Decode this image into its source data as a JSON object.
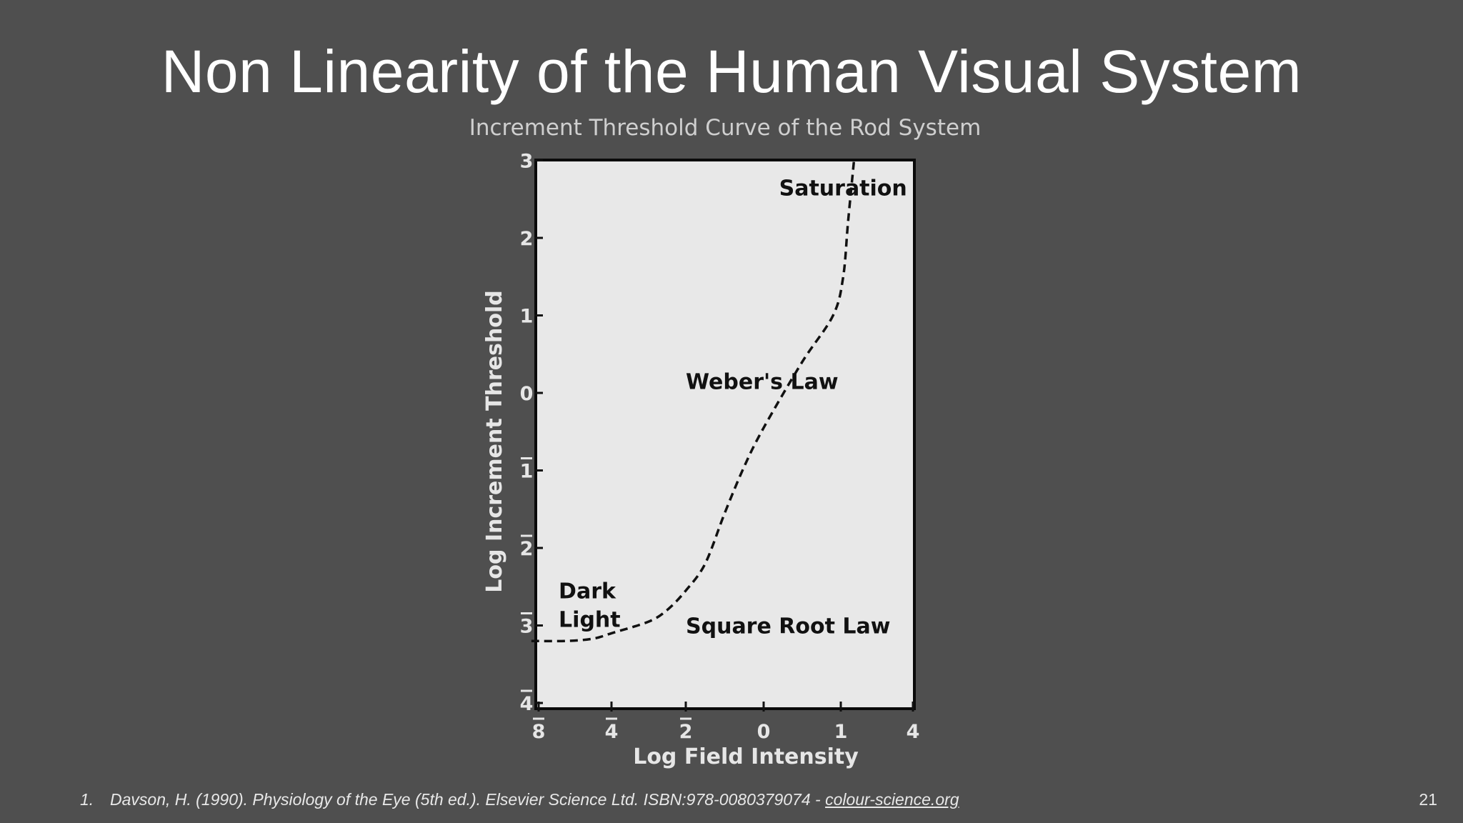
{
  "slide": {
    "title": "Non Linearity of the Human Visual System",
    "page_number": "21"
  },
  "footnote": {
    "number": "1.",
    "citation": "Davson, H. (1990). Physiology of the Eye (5th ed.). Elsevier Science Ltd. ISBN:978-0080379074 - ",
    "link_text": "colour-science.org"
  },
  "chart_data": {
    "type": "line",
    "title": "Increment Threshold Curve of the Rod System",
    "xlabel": "Log Field Intensity",
    "ylabel": "Log Increment Threshold",
    "x_ticks": [
      {
        "value": -8,
        "label": "8",
        "bar": true
      },
      {
        "value": -4,
        "label": "4",
        "bar": true
      },
      {
        "value": -2,
        "label": "2",
        "bar": true
      },
      {
        "value": 0,
        "label": "0",
        "bar": false
      },
      {
        "value": 1,
        "label": "1",
        "bar": false
      },
      {
        "value": 4,
        "label": "4",
        "bar": false
      }
    ],
    "y_ticks": [
      {
        "value": -4,
        "label": "4",
        "bar": true
      },
      {
        "value": -3,
        "label": "3",
        "bar": true
      },
      {
        "value": -2,
        "label": "2",
        "bar": true
      },
      {
        "value": -1,
        "label": "1",
        "bar": true
      },
      {
        "value": 0,
        "label": "0",
        "bar": false
      },
      {
        "value": 1,
        "label": "1",
        "bar": false
      },
      {
        "value": 2,
        "label": "2",
        "bar": false
      },
      {
        "value": 3,
        "label": "3",
        "bar": false
      }
    ],
    "series": [
      {
        "style": "dashed",
        "points": [
          {
            "x": -8.4,
            "y": -3.2
          },
          {
            "x": -6.5,
            "y": -3.2
          },
          {
            "x": -5,
            "y": -3.17
          },
          {
            "x": -4,
            "y": -3.1
          },
          {
            "x": -3,
            "y": -2.95
          },
          {
            "x": -2.5,
            "y": -2.8
          },
          {
            "x": -2,
            "y": -2.55
          },
          {
            "x": -1.5,
            "y": -2.2
          },
          {
            "x": -1,
            "y": -1.55
          },
          {
            "x": -0.5,
            "y": -0.95
          },
          {
            "x": 0,
            "y": -0.45
          },
          {
            "x": 0.5,
            "y": 0.4
          },
          {
            "x": 0.9,
            "y": 1
          },
          {
            "x": 1.1,
            "y": 1.5
          },
          {
            "x": 1.3,
            "y": 2.2
          },
          {
            "x": 1.55,
            "y": 3
          }
        ]
      }
    ],
    "annotations": [
      {
        "text": "Saturation",
        "x": 0.2,
        "y": 2.55
      },
      {
        "text": "Weber's Law",
        "x": -2.0,
        "y": 0.05
      },
      {
        "text": "Dark",
        "x": -6.9,
        "y": -2.65
      },
      {
        "text": "Light",
        "x": -6.9,
        "y": -3.02
      },
      {
        "text": "Square Root Law",
        "x": -2.0,
        "y": -3.1
      }
    ],
    "plot_background": "#e8e8e8",
    "grid": false
  }
}
